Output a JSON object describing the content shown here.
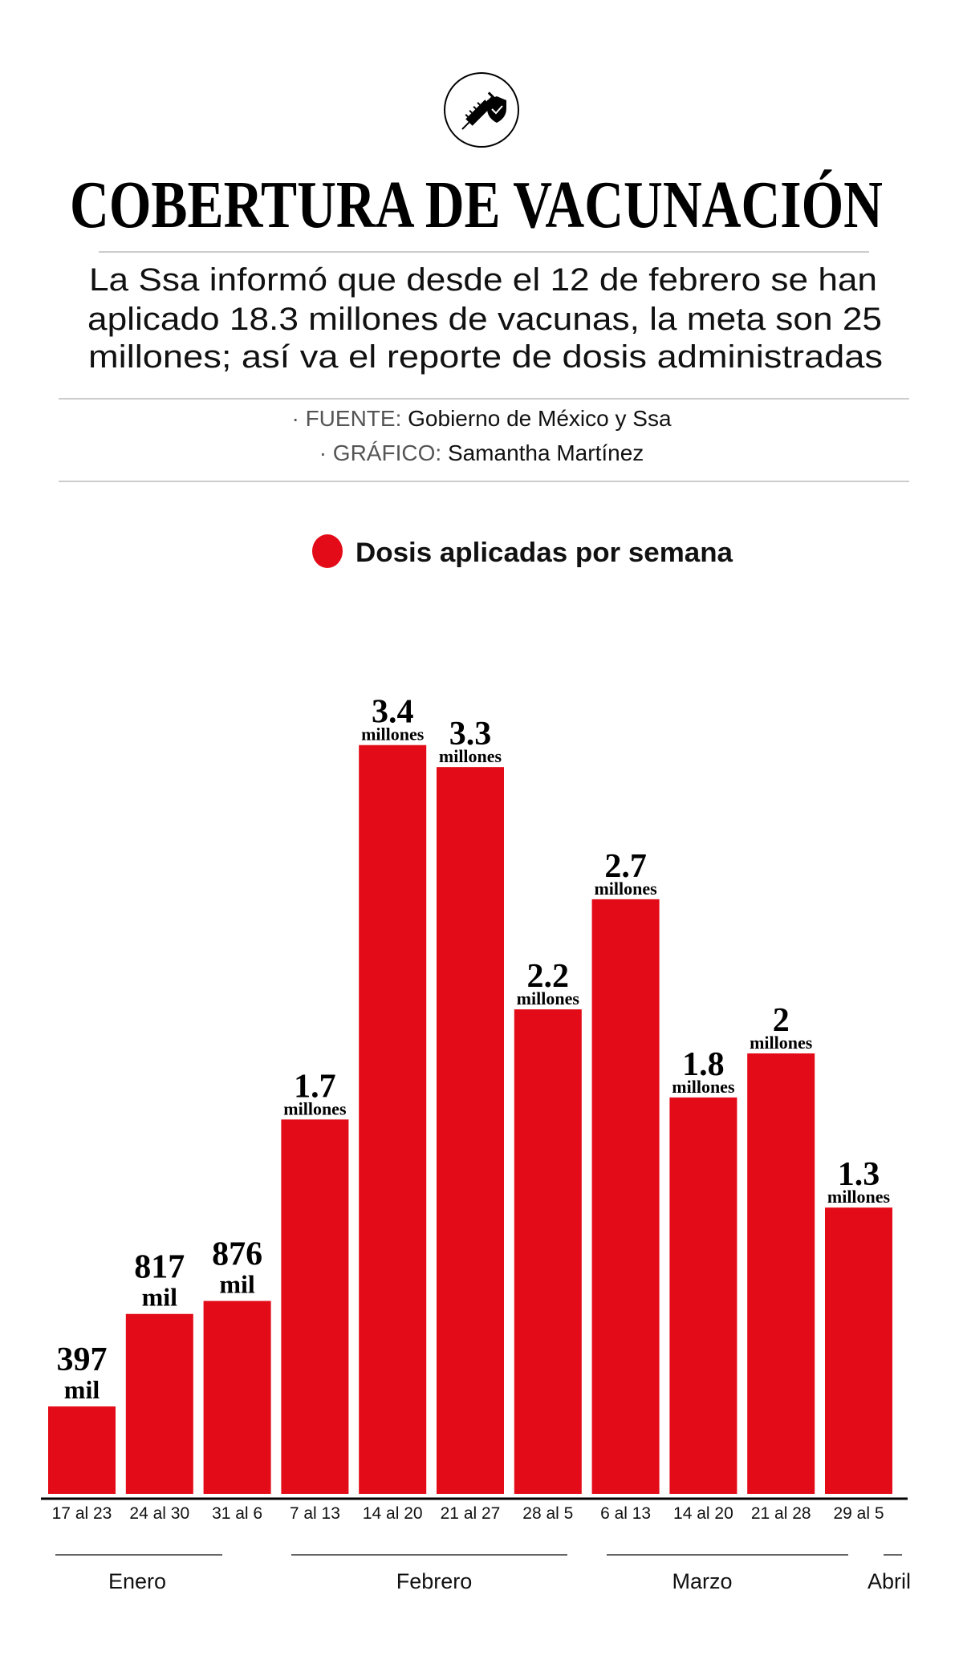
{
  "header": {
    "icon": "syringe-shield-icon",
    "title": "COBERTURA DE VACUNACIÓN",
    "subtitle_lines": [
      "La Ssa informó que desde el 12 de febrero se han",
      "aplicado 18.3 millones de vacunas, la meta son 25",
      "millones; así va el reporte de dosis administradas"
    ],
    "source_label": "· FUENTE:",
    "source_value": "Gobierno de México y Ssa",
    "graphic_label": "· GRÁFICO:",
    "graphic_value": "Samantha Martínez"
  },
  "chart_data": {
    "type": "bar",
    "legend": "Dosis aplicadas por semana",
    "legend_placement": "top",
    "bar_color": "#e30b17",
    "grid": false,
    "categories": [
      "17 al 23",
      "24 al 30",
      "31 al 6",
      "7 al 13",
      "14 al 20",
      "21 al 27",
      "28 al 5",
      "6 al 13",
      "14 al 20",
      "21 al 28",
      "29 al 5"
    ],
    "values_millions": [
      0.397,
      0.817,
      0.876,
      1.7,
      3.4,
      3.3,
      2.2,
      2.7,
      1.8,
      2.0,
      1.3
    ],
    "data_labels": [
      {
        "number": "397",
        "unit": "mil"
      },
      {
        "number": "817",
        "unit": "mil"
      },
      {
        "number": "876",
        "unit": "mil"
      },
      {
        "number": "1.7",
        "unit": "millones"
      },
      {
        "number": "3.4",
        "unit": "millones"
      },
      {
        "number": "3.3",
        "unit": "millones"
      },
      {
        "number": "2.2",
        "unit": "millones"
      },
      {
        "number": "2.7",
        "unit": "millones"
      },
      {
        "number": "1.8",
        "unit": "millones"
      },
      {
        "number": "2",
        "unit": "millones"
      },
      {
        "number": "1.3",
        "unit": "millones"
      }
    ],
    "month_groups": [
      {
        "label": "Enero",
        "from": 0,
        "to": 2
      },
      {
        "label": "Febrero",
        "from": 3,
        "to": 6
      },
      {
        "label": "Marzo",
        "from": 7,
        "to": 9
      },
      {
        "label": "Abril",
        "from": 10,
        "to": 10
      }
    ],
    "ylim": [
      0,
      3.4
    ]
  }
}
